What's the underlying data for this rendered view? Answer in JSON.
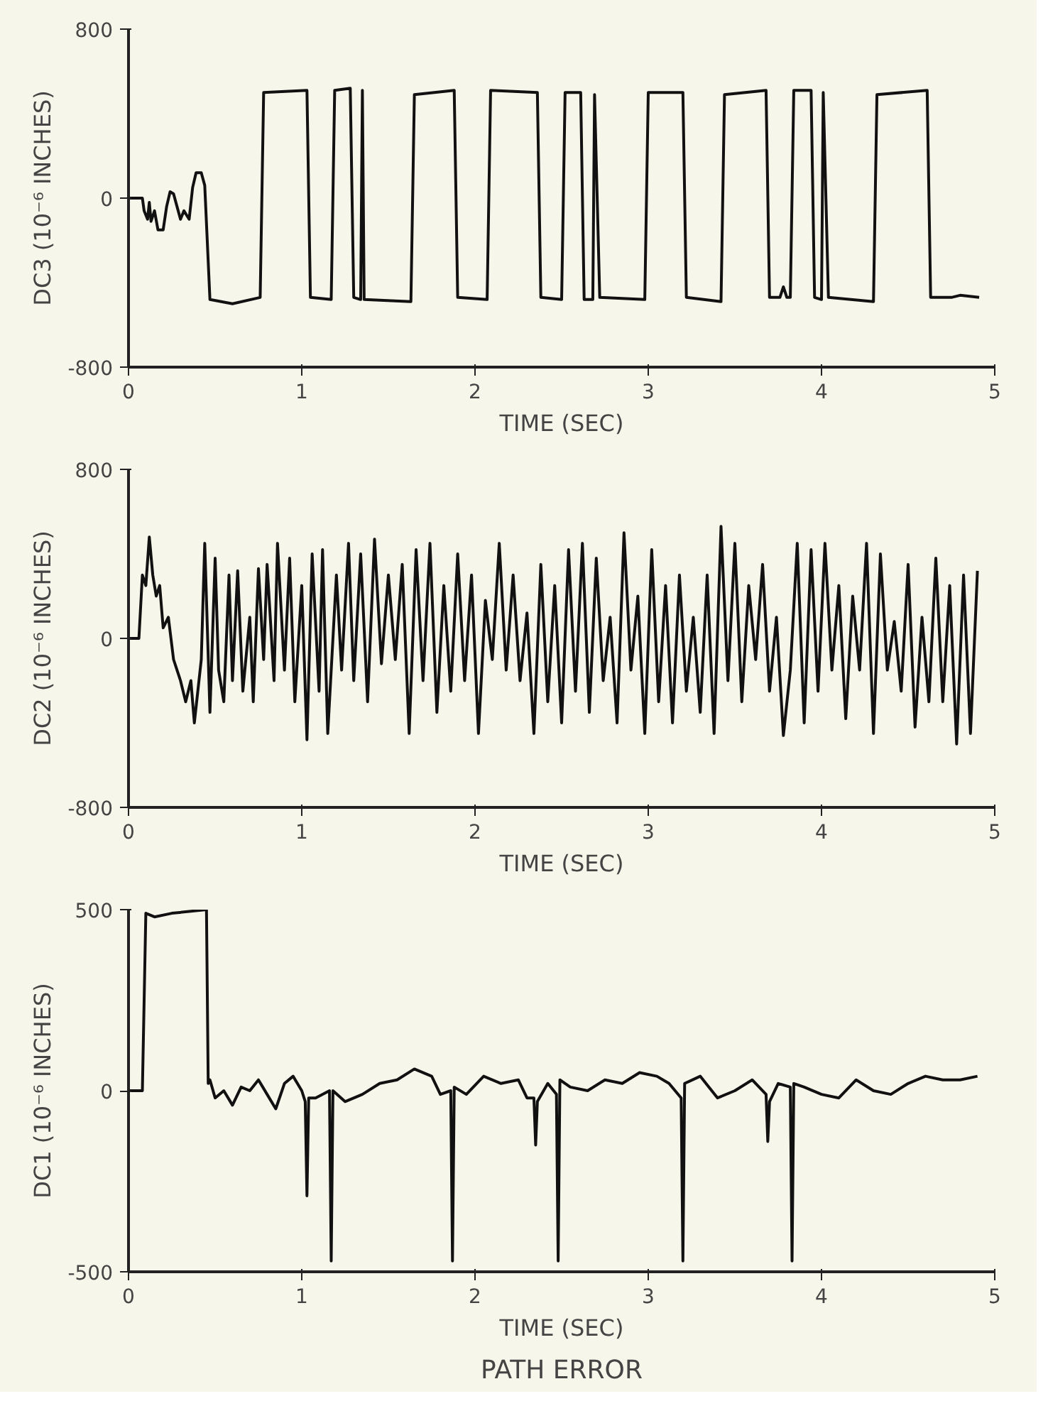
{
  "chart_data": [
    {
      "type": "line",
      "xlabel": "TIME (SEC)",
      "ylabel": "DC3 (10⁻⁶ INCHES)",
      "xlim": [
        0,
        5
      ],
      "ylim": [
        -800,
        800
      ],
      "xticks": [
        0,
        1,
        2,
        3,
        4,
        5
      ],
      "yticks": [
        -800,
        0,
        800
      ],
      "color": "#111111",
      "x": [
        0,
        0.08,
        0.09,
        0.11,
        0.12,
        0.13,
        0.15,
        0.17,
        0.2,
        0.22,
        0.24,
        0.26,
        0.28,
        0.3,
        0.32,
        0.35,
        0.37,
        0.39,
        0.42,
        0.44,
        0.47,
        0.6,
        0.76,
        0.78,
        1.03,
        1.05,
        1.17,
        1.19,
        1.28,
        1.3,
        1.34,
        1.35,
        1.36,
        1.63,
        1.65,
        1.88,
        1.9,
        2.07,
        2.09,
        2.36,
        2.38,
        2.5,
        2.52,
        2.61,
        2.63,
        2.68,
        2.69,
        2.72,
        2.98,
        3.0,
        3.2,
        3.22,
        3.42,
        3.44,
        3.68,
        3.7,
        3.76,
        3.78,
        3.8,
        3.82,
        3.84,
        3.94,
        3.96,
        4.0,
        4.01,
        4.04,
        4.3,
        4.32,
        4.61,
        4.63,
        4.75,
        4.8,
        4.91
      ],
      "values": [
        0,
        0,
        -60,
        -100,
        -20,
        -110,
        -60,
        -150,
        -150,
        -40,
        30,
        20,
        -40,
        -100,
        -60,
        -100,
        50,
        120,
        120,
        60,
        -480,
        -500,
        -470,
        500,
        510,
        -470,
        -480,
        510,
        520,
        -470,
        -480,
        510,
        -480,
        -490,
        490,
        510,
        -470,
        -480,
        510,
        500,
        -470,
        -480,
        500,
        500,
        -480,
        -480,
        490,
        -470,
        -480,
        500,
        500,
        -470,
        -490,
        490,
        510,
        -470,
        -470,
        -420,
        -470,
        -470,
        510,
        510,
        -470,
        -480,
        500,
        -470,
        -490,
        490,
        510,
        -470,
        -470,
        -460,
        -470
      ]
    },
    {
      "type": "line",
      "xlabel": "TIME (SEC)",
      "ylabel": "DC2 (10⁻⁶ INCHES)",
      "xlim": [
        0,
        5
      ],
      "ylim": [
        -800,
        800
      ],
      "xticks": [
        0,
        1,
        2,
        3,
        4,
        5
      ],
      "yticks": [
        -800,
        0,
        800
      ],
      "color": "#111111",
      "x": [
        0,
        0.06,
        0.08,
        0.1,
        0.12,
        0.14,
        0.16,
        0.18,
        0.2,
        0.23,
        0.26,
        0.28,
        0.3,
        0.33,
        0.36,
        0.38,
        0.42,
        0.44,
        0.47,
        0.5,
        0.52,
        0.55,
        0.58,
        0.6,
        0.63,
        0.66,
        0.7,
        0.72,
        0.75,
        0.78,
        0.8,
        0.84,
        0.86,
        0.9,
        0.93,
        0.96,
        1.0,
        1.03,
        1.06,
        1.1,
        1.12,
        1.15,
        1.2,
        1.23,
        1.27,
        1.3,
        1.34,
        1.38,
        1.42,
        1.46,
        1.5,
        1.54,
        1.58,
        1.62,
        1.66,
        1.7,
        1.74,
        1.78,
        1.82,
        1.86,
        1.9,
        1.94,
        1.98,
        2.02,
        2.06,
        2.1,
        2.14,
        2.18,
        2.22,
        2.26,
        2.3,
        2.34,
        2.38,
        2.42,
        2.46,
        2.5,
        2.54,
        2.58,
        2.62,
        2.66,
        2.7,
        2.74,
        2.78,
        2.82,
        2.86,
        2.9,
        2.94,
        2.98,
        3.02,
        3.06,
        3.1,
        3.14,
        3.18,
        3.22,
        3.26,
        3.3,
        3.34,
        3.38,
        3.42,
        3.46,
        3.5,
        3.54,
        3.58,
        3.62,
        3.66,
        3.7,
        3.74,
        3.78,
        3.82,
        3.86,
        3.9,
        3.94,
        3.98,
        4.02,
        4.06,
        4.1,
        4.14,
        4.18,
        4.22,
        4.26,
        4.3,
        4.34,
        4.38,
        4.42,
        4.46,
        4.5,
        4.54,
        4.58,
        4.62,
        4.66,
        4.7,
        4.74,
        4.78,
        4.82,
        4.86,
        4.9
      ],
      "values": [
        0,
        0,
        300,
        250,
        480,
        300,
        200,
        250,
        50,
        100,
        -100,
        -150,
        -200,
        -300,
        -200,
        -400,
        -100,
        450,
        -350,
        380,
        -150,
        -300,
        300,
        -200,
        320,
        -250,
        100,
        -300,
        330,
        -100,
        350,
        -200,
        450,
        -150,
        380,
        -300,
        250,
        -480,
        400,
        -250,
        420,
        -450,
        300,
        -150,
        450,
        -200,
        400,
        -300,
        470,
        -120,
        300,
        -100,
        350,
        -450,
        420,
        -200,
        450,
        -350,
        250,
        -250,
        400,
        -200,
        300,
        -450,
        180,
        -100,
        450,
        -150,
        300,
        -200,
        120,
        -450,
        350,
        -300,
        250,
        -400,
        420,
        -250,
        450,
        -350,
        380,
        -200,
        100,
        -400,
        500,
        -150,
        200,
        -450,
        420,
        -300,
        250,
        -400,
        300,
        -250,
        100,
        -350,
        300,
        -450,
        530,
        -200,
        450,
        -300,
        250,
        -100,
        350,
        -250,
        100,
        -460,
        -150,
        450,
        -400,
        420,
        -250,
        450,
        -150,
        250,
        -380,
        200,
        -150,
        450,
        -450,
        400,
        -150,
        80,
        -250,
        350,
        -420,
        100,
        -300,
        380,
        -300,
        250,
        -500,
        300,
        -450,
        320
      ]
    },
    {
      "type": "line",
      "xlabel": "TIME (SEC)",
      "ylabel": "DC1 (10⁻⁶ INCHES)",
      "xlim": [
        0,
        5
      ],
      "ylim": [
        -500,
        500
      ],
      "xticks": [
        0,
        1,
        2,
        3,
        4,
        5
      ],
      "yticks": [
        -500,
        0,
        500
      ],
      "color": "#111111",
      "annotations": [
        "PATH ERROR"
      ],
      "x": [
        0,
        0.08,
        0.1,
        0.15,
        0.25,
        0.35,
        0.45,
        0.46,
        0.47,
        0.5,
        0.55,
        0.6,
        0.65,
        0.7,
        0.75,
        0.8,
        0.85,
        0.9,
        0.95,
        1.0,
        1.02,
        1.03,
        1.04,
        1.08,
        1.16,
        1.17,
        1.18,
        1.25,
        1.35,
        1.45,
        1.55,
        1.65,
        1.75,
        1.8,
        1.86,
        1.87,
        1.88,
        1.95,
        2.05,
        2.15,
        2.25,
        2.3,
        2.34,
        2.35,
        2.36,
        2.42,
        2.47,
        2.48,
        2.49,
        2.55,
        2.65,
        2.75,
        2.85,
        2.95,
        3.05,
        3.12,
        3.19,
        3.2,
        3.21,
        3.3,
        3.4,
        3.5,
        3.6,
        3.68,
        3.69,
        3.7,
        3.75,
        3.82,
        3.83,
        3.84,
        3.9,
        4.0,
        4.1,
        4.2,
        4.3,
        4.4,
        4.5,
        4.6,
        4.7,
        4.8,
        4.9
      ],
      "values": [
        0,
        0,
        490,
        480,
        490,
        495,
        500,
        20,
        30,
        -20,
        0,
        -40,
        10,
        0,
        30,
        -10,
        -50,
        20,
        40,
        0,
        -30,
        -290,
        -20,
        -20,
        0,
        -470,
        0,
        -30,
        -10,
        20,
        30,
        60,
        40,
        -10,
        0,
        -470,
        10,
        -10,
        40,
        20,
        30,
        -20,
        -20,
        -150,
        -30,
        20,
        -10,
        -470,
        30,
        10,
        0,
        30,
        20,
        50,
        40,
        20,
        -20,
        -470,
        20,
        40,
        -20,
        0,
        30,
        -10,
        -140,
        -30,
        20,
        10,
        -470,
        20,
        10,
        -10,
        -20,
        30,
        0,
        -10,
        20,
        40,
        30,
        30,
        40
      ]
    }
  ]
}
